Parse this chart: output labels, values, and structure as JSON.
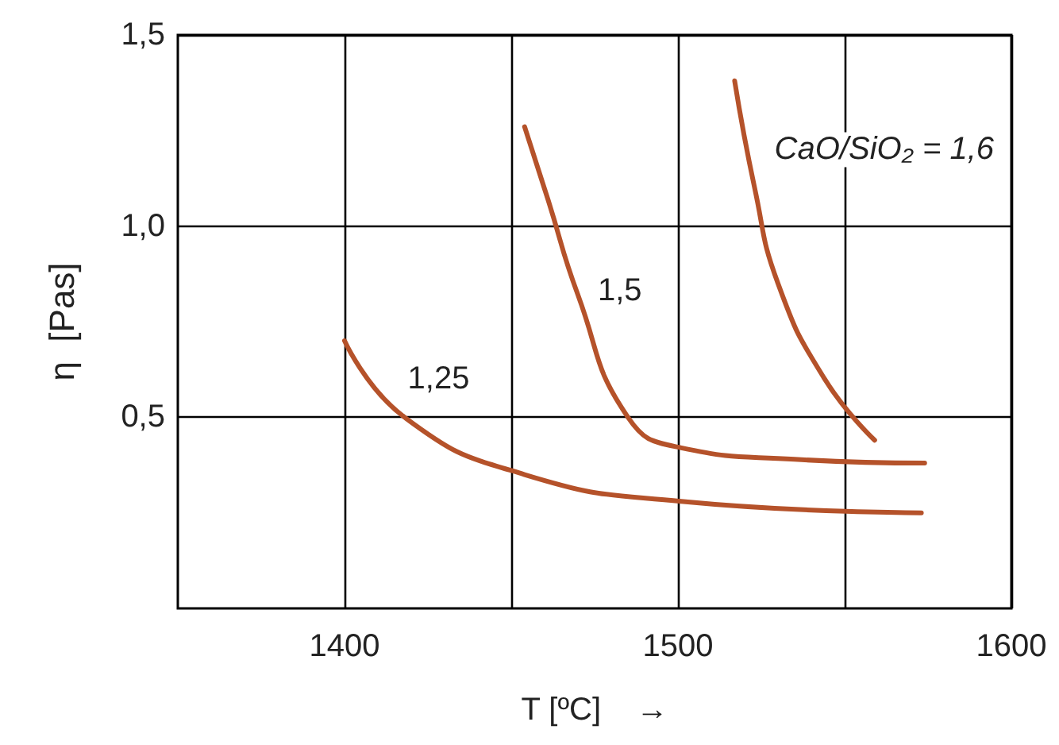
{
  "chart_data": {
    "type": "line",
    "xlabel": "T [ºC]    →",
    "ylabel": "η  [Pas]",
    "xlim": [
      1350,
      1600
    ],
    "xticks": [
      1400,
      {
        "value": 1450,
        "label": null
      },
      1500,
      {
        "value": 1550,
        "label": null
      },
      1600
    ],
    "ylim": [
      0,
      1.5
    ],
    "yticks": [
      {
        "value": 0.5,
        "label": "0,5"
      },
      {
        "value": 1.0,
        "label": "1,0"
      },
      {
        "value": 1.5,
        "label": "1,5"
      }
    ],
    "grid": true,
    "marker": "none",
    "line_style": "solid",
    "series": [
      {
        "color": "#b5522a",
        "x": [
          1400,
          1418,
          1454,
          1501,
          1573
        ],
        "values": [
          0.7,
          0.5,
          0.35,
          0.28,
          0.25
        ]
      },
      {
        "color": "#b5522a",
        "x": [
          1454,
          1461,
          1470,
          1485,
          1501,
          1535,
          1574
        ],
        "values": [
          1.26,
          1.07,
          0.82,
          0.5,
          0.42,
          0.39,
          0.38
        ]
      },
      {
        "color": "#b5522a",
        "x": [
          1517,
          1523,
          1530,
          1544,
          1559
        ],
        "values": [
          1.38,
          1.1,
          0.85,
          0.6,
          0.44
        ]
      }
    ],
    "annotations": [
      "1,25",
      "1,5",
      "CaO/SiO₂ = 1,6"
    ]
  }
}
